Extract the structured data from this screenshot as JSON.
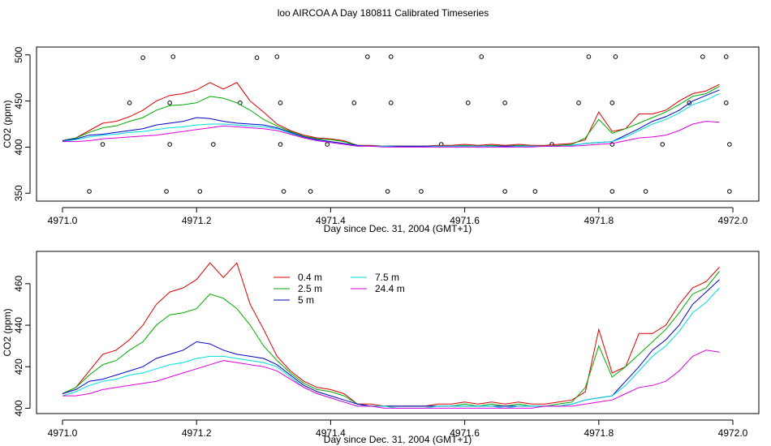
{
  "figure": {
    "title": "loo AIRCOA A  Day 180811  Calibrated Timeseries"
  },
  "colors": {
    "0.4 m": "#dd0000",
    "2.5 m": "#00aa00",
    "5 m": "#0000cc",
    "7.5 m": "#00dddd",
    "24.4 m": "#dd00dd",
    "markers": "#000000"
  },
  "chart_data": [
    {
      "type": "line",
      "title": "loo AIRCOA A  Day 180811  Calibrated Timeseries",
      "xlabel": "Day since Dec. 31, 2004 (GMT+1)",
      "ylabel": "CO2 (ppm)",
      "xlim": [
        4970.98,
        4972.02
      ],
      "ylim": [
        345,
        505
      ],
      "xticks": [
        "4971.0",
        "4971.2",
        "4971.4",
        "4971.6",
        "4971.8",
        "4972.0"
      ],
      "yticks": [
        "350",
        "400",
        "450",
        "500"
      ],
      "legend": "none",
      "grid": false,
      "x": [
        4971.0,
        4971.02,
        4971.04,
        4971.06,
        4971.08,
        4971.1,
        4971.12,
        4971.14,
        4971.16,
        4971.18,
        4971.2,
        4971.22,
        4971.24,
        4971.26,
        4971.28,
        4971.3,
        4971.32,
        4971.34,
        4971.36,
        4971.38,
        4971.4,
        4971.42,
        4971.44,
        4971.46,
        4971.48,
        4971.5,
        4971.52,
        4971.54,
        4971.56,
        4971.58,
        4971.6,
        4971.62,
        4971.64,
        4971.66,
        4971.68,
        4971.7,
        4971.72,
        4971.74,
        4971.76,
        4971.78,
        4971.8,
        4971.82,
        4971.84,
        4971.86,
        4971.88,
        4971.9,
        4971.92,
        4971.94,
        4971.96,
        4971.98
      ],
      "series": [
        {
          "name": "0.4 m",
          "values": [
            407,
            410,
            418,
            426,
            428,
            433,
            440,
            450,
            456,
            458,
            462,
            470,
            463,
            470,
            450,
            438,
            425,
            418,
            413,
            410,
            409,
            407,
            402,
            402,
            401,
            401,
            401,
            401,
            402,
            402,
            403,
            402,
            403,
            402,
            403,
            402,
            402,
            403,
            404,
            408,
            438,
            417,
            420,
            436,
            436,
            440,
            450,
            458,
            461,
            468
          ]
        },
        {
          "name": "2.5 m",
          "values": [
            407,
            410,
            416,
            421,
            423,
            428,
            432,
            440,
            445,
            446,
            448,
            455,
            453,
            448,
            440,
            430,
            423,
            417,
            412,
            409,
            408,
            406,
            402,
            401,
            401,
            401,
            401,
            401,
            401,
            401,
            402,
            401,
            402,
            401,
            402,
            401,
            401,
            402,
            403,
            410,
            430,
            415,
            420,
            426,
            432,
            438,
            446,
            455,
            458,
            466
          ]
        },
        {
          "name": "5 m",
          "values": [
            407,
            409,
            413,
            414,
            416,
            418,
            420,
            424,
            426,
            428,
            432,
            431,
            428,
            426,
            425,
            424,
            421,
            416,
            411,
            408,
            406,
            404,
            402,
            401,
            401,
            401,
            401,
            401,
            401,
            401,
            401,
            401,
            401,
            401,
            401,
            401,
            401,
            401,
            402,
            404,
            405,
            406,
            413,
            420,
            428,
            433,
            440,
            450,
            456,
            462
          ]
        },
        {
          "name": "7.5 m",
          "values": [
            406,
            408,
            411,
            413,
            414,
            416,
            417,
            419,
            421,
            422,
            424,
            425,
            425,
            424,
            423,
            422,
            420,
            415,
            410,
            407,
            405,
            403,
            401,
            401,
            401,
            400,
            400,
            400,
            401,
            401,
            401,
            401,
            401,
            400,
            401,
            401,
            401,
            401,
            402,
            404,
            405,
            406,
            411,
            418,
            425,
            430,
            437,
            446,
            451,
            458
          ]
        },
        {
          "name": "24.4 m",
          "values": [
            406,
            406,
            407,
            409,
            410,
            411,
            412,
            413,
            415,
            417,
            419,
            421,
            423,
            422,
            421,
            420,
            418,
            414,
            410,
            407,
            405,
            403,
            401,
            401,
            400,
            400,
            400,
            400,
            400,
            400,
            400,
            400,
            400,
            400,
            400,
            400,
            401,
            401,
            401,
            402,
            403,
            404,
            407,
            410,
            411,
            413,
            418,
            425,
            428,
            427
          ]
        }
      ],
      "markers": {
        "name": "calibration flags",
        "x": [
          4971.04,
          4971.06,
          4971.1,
          4971.12,
          4971.155,
          4971.16,
          4971.16,
          4971.165,
          4971.205,
          4971.225,
          4971.265,
          4971.29,
          4971.32,
          4971.325,
          4971.325,
          4971.33,
          4971.37,
          4971.395,
          4971.435,
          4971.455,
          4971.485,
          4971.49,
          4971.49,
          4971.535,
          4971.565,
          4971.605,
          4971.625,
          4971.66,
          4971.66,
          4971.705,
          4971.73,
          4971.77,
          4971.785,
          4971.82,
          4971.82,
          4971.82,
          4971.825,
          4971.87,
          4971.895,
          4971.935,
          4971.955,
          4971.99,
          4971.99,
          4971.995,
          4971.995
        ],
        "y": [
          352,
          403,
          448,
          497,
          352,
          403,
          448,
          498,
          352,
          403,
          448,
          497,
          498,
          448,
          403,
          352,
          352,
          403,
          448,
          498,
          352,
          448,
          498,
          352,
          403,
          448,
          498,
          448,
          352,
          352,
          403,
          448,
          498,
          352,
          403,
          448,
          498,
          352,
          403,
          448,
          498,
          498,
          448,
          403,
          352
        ]
      }
    },
    {
      "type": "line",
      "title": "",
      "xlabel": "Day since Dec. 31, 2004 (GMT+1)",
      "ylabel": "CO2 (ppm)",
      "xlim": [
        4970.98,
        4972.02
      ],
      "ylim": [
        399,
        474
      ],
      "xticks": [
        "4971.0",
        "4971.2",
        "4971.4",
        "4971.6",
        "4971.8",
        "4972.0"
      ],
      "yticks": [
        "400",
        "420",
        "440",
        "460"
      ],
      "legend": "top-left",
      "grid": false,
      "legend_entries": [
        "0.4 m",
        "2.5 m",
        "5 m",
        "7.5 m",
        "24.4 m"
      ],
      "x": [
        4971.0,
        4971.02,
        4971.04,
        4971.06,
        4971.08,
        4971.1,
        4971.12,
        4971.14,
        4971.16,
        4971.18,
        4971.2,
        4971.22,
        4971.24,
        4971.26,
        4971.28,
        4971.3,
        4971.32,
        4971.34,
        4971.36,
        4971.38,
        4971.4,
        4971.42,
        4971.44,
        4971.46,
        4971.48,
        4971.5,
        4971.52,
        4971.54,
        4971.56,
        4971.58,
        4971.6,
        4971.62,
        4971.64,
        4971.66,
        4971.68,
        4971.7,
        4971.72,
        4971.74,
        4971.76,
        4971.78,
        4971.8,
        4971.82,
        4971.84,
        4971.86,
        4971.88,
        4971.9,
        4971.92,
        4971.94,
        4971.96,
        4971.98
      ],
      "series": [
        {
          "name": "0.4 m",
          "values": [
            407,
            410,
            418,
            426,
            428,
            433,
            440,
            450,
            456,
            458,
            462,
            470,
            463,
            470,
            450,
            438,
            425,
            418,
            413,
            410,
            409,
            407,
            402,
            402,
            401,
            401,
            401,
            401,
            402,
            402,
            403,
            402,
            403,
            402,
            403,
            402,
            402,
            403,
            404,
            408,
            438,
            417,
            420,
            436,
            436,
            440,
            450,
            458,
            461,
            468
          ]
        },
        {
          "name": "2.5 m",
          "values": [
            407,
            410,
            416,
            421,
            423,
            428,
            432,
            440,
            445,
            446,
            448,
            455,
            453,
            448,
            440,
            430,
            423,
            417,
            412,
            409,
            408,
            406,
            402,
            401,
            401,
            401,
            401,
            401,
            401,
            401,
            402,
            401,
            402,
            401,
            402,
            401,
            401,
            402,
            403,
            410,
            430,
            415,
            420,
            426,
            432,
            438,
            446,
            455,
            458,
            466
          ]
        },
        {
          "name": "5 m",
          "values": [
            407,
            409,
            413,
            414,
            416,
            418,
            420,
            424,
            426,
            428,
            432,
            431,
            428,
            426,
            425,
            424,
            421,
            416,
            411,
            408,
            406,
            404,
            402,
            401,
            401,
            401,
            401,
            401,
            401,
            401,
            401,
            401,
            401,
            401,
            401,
            401,
            401,
            401,
            402,
            404,
            405,
            406,
            413,
            420,
            428,
            433,
            440,
            450,
            456,
            462
          ]
        },
        {
          "name": "7.5 m",
          "values": [
            406,
            408,
            411,
            413,
            414,
            416,
            417,
            419,
            421,
            422,
            424,
            425,
            425,
            424,
            423,
            422,
            420,
            415,
            410,
            407,
            405,
            403,
            401,
            401,
            401,
            400,
            400,
            400,
            401,
            401,
            401,
            401,
            401,
            400,
            401,
            401,
            401,
            401,
            402,
            404,
            405,
            406,
            411,
            418,
            425,
            430,
            437,
            446,
            451,
            458
          ]
        },
        {
          "name": "24.4 m",
          "values": [
            406,
            406,
            407,
            409,
            410,
            411,
            412,
            413,
            415,
            417,
            419,
            421,
            423,
            422,
            421,
            420,
            418,
            414,
            410,
            407,
            405,
            403,
            401,
            401,
            400,
            400,
            400,
            400,
            400,
            400,
            400,
            400,
            400,
            400,
            400,
            400,
            401,
            401,
            401,
            402,
            403,
            404,
            407,
            410,
            411,
            413,
            418,
            425,
            428,
            427
          ]
        }
      ]
    }
  ]
}
